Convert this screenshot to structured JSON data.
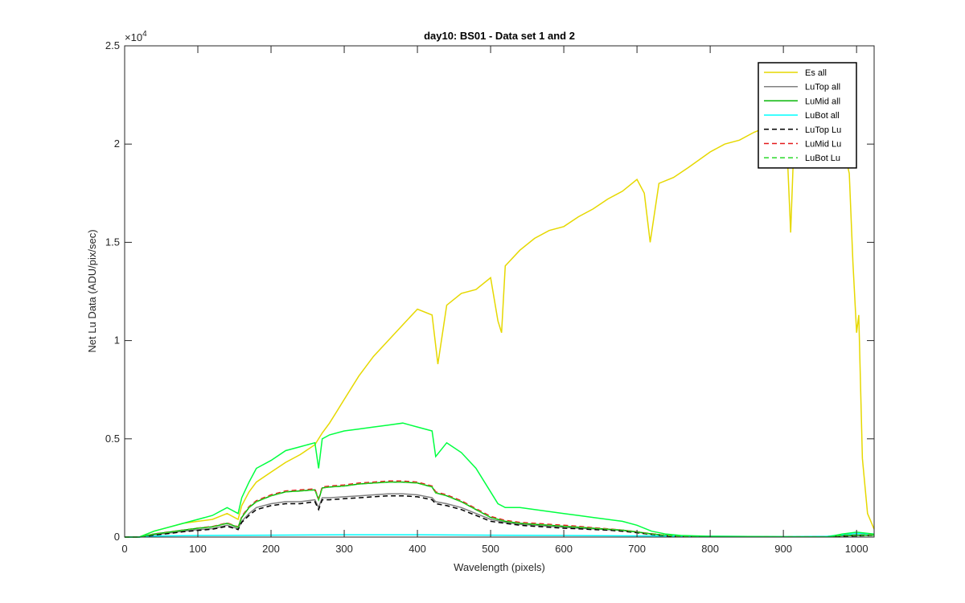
{
  "chart_data": {
    "type": "line",
    "title": "day10: BS01 - Data set 1 and 2",
    "xlabel": "Wavelength (pixels)",
    "ylabel": "Net Lu Data (ADU/pix/sec)",
    "xlim": [
      0,
      1024
    ],
    "ylim": [
      0,
      25000
    ],
    "y_exponent_label": "×10",
    "y_exponent_value": "4",
    "xticks": [
      0,
      100,
      200,
      300,
      400,
      500,
      600,
      700,
      800,
      900,
      1000
    ],
    "xtick_labels": [
      "0",
      "100",
      "200",
      "300",
      "400",
      "500",
      "600",
      "700",
      "800",
      "900",
      "1000"
    ],
    "yticks": [
      0,
      5000,
      10000,
      15000,
      20000,
      25000
    ],
    "ytick_labels": [
      "0",
      "0.5",
      "1",
      "1.5",
      "2",
      "2.5"
    ],
    "grid": false,
    "legend_position": "top-right",
    "series": [
      {
        "name": "Es  all",
        "color": "#e6d800",
        "dash": "solid",
        "x": [
          0,
          20,
          40,
          60,
          80,
          100,
          120,
          140,
          155,
          160,
          170,
          180,
          200,
          220,
          240,
          260,
          270,
          280,
          290,
          300,
          320,
          340,
          360,
          380,
          400,
          420,
          428,
          440,
          460,
          480,
          500,
          510,
          515,
          520,
          540,
          560,
          580,
          600,
          620,
          640,
          660,
          680,
          700,
          710,
          718,
          730,
          750,
          770,
          800,
          820,
          840,
          860,
          880,
          900,
          905,
          910,
          915,
          940,
          960,
          980,
          990,
          995,
          1000,
          1003,
          1008,
          1015,
          1024
        ],
        "y": [
          0,
          0,
          300,
          500,
          700,
          800,
          900,
          1200,
          900,
          1600,
          2300,
          2800,
          3300,
          3800,
          4200,
          4700,
          5300,
          5800,
          6400,
          7000,
          8200,
          9200,
          10000,
          10800,
          11600,
          11300,
          8800,
          11800,
          12400,
          12600,
          13200,
          11000,
          10400,
          13800,
          14600,
          15200,
          15600,
          15800,
          16300,
          16700,
          17200,
          17600,
          18200,
          17500,
          15000,
          18000,
          18300,
          18800,
          19600,
          20000,
          20200,
          20600,
          20900,
          20600,
          19800,
          15500,
          20700,
          21000,
          20800,
          20200,
          18500,
          14000,
          10400,
          11300,
          4000,
          1200,
          400
        ]
      },
      {
        "name": "LuTop  all",
        "color": "#808080",
        "dash": "solid",
        "x": [
          0,
          20,
          40,
          60,
          80,
          100,
          120,
          140,
          155,
          160,
          170,
          180,
          200,
          220,
          240,
          260,
          265,
          270,
          280,
          300,
          320,
          340,
          360,
          380,
          400,
          420,
          425,
          440,
          460,
          480,
          500,
          520,
          540,
          560,
          580,
          600,
          620,
          640,
          660,
          680,
          700,
          720,
          740,
          760,
          800,
          900,
          960,
          980,
          1000,
          1024
        ],
        "y": [
          0,
          0,
          120,
          200,
          300,
          380,
          430,
          600,
          420,
          800,
          1200,
          1500,
          1700,
          1800,
          1800,
          1900,
          1500,
          2000,
          2000,
          2050,
          2100,
          2150,
          2200,
          2200,
          2150,
          2000,
          1800,
          1700,
          1500,
          1200,
          900,
          750,
          650,
          600,
          550,
          500,
          450,
          420,
          380,
          330,
          250,
          150,
          80,
          30,
          20,
          10,
          10,
          60,
          80,
          100
        ]
      },
      {
        "name": "LuMid  all",
        "color": "#00b400",
        "dash": "solid",
        "x": [
          0,
          20,
          40,
          60,
          80,
          100,
          120,
          140,
          155,
          160,
          170,
          180,
          200,
          220,
          240,
          260,
          265,
          270,
          280,
          300,
          320,
          340,
          360,
          380,
          400,
          420,
          425,
          440,
          460,
          480,
          500,
          520,
          540,
          560,
          580,
          600,
          620,
          640,
          660,
          680,
          700,
          720,
          740,
          760,
          800,
          900,
          960,
          980,
          1000,
          1024
        ],
        "y": [
          0,
          0,
          150,
          250,
          350,
          450,
          520,
          700,
          500,
          1000,
          1500,
          1800,
          2100,
          2300,
          2350,
          2400,
          1900,
          2500,
          2550,
          2600,
          2700,
          2750,
          2800,
          2800,
          2750,
          2550,
          2250,
          2100,
          1800,
          1400,
          1000,
          800,
          700,
          650,
          600,
          550,
          500,
          450,
          400,
          350,
          260,
          160,
          80,
          30,
          20,
          10,
          10,
          80,
          100,
          100
        ]
      },
      {
        "name": "LuBot  all",
        "color": "#00ffff",
        "dash": "solid",
        "x": [
          0,
          20,
          40,
          60,
          80,
          100,
          200,
          300,
          400,
          500,
          600,
          700,
          800,
          900,
          960,
          980,
          1000,
          1024
        ],
        "y": [
          0,
          0,
          50,
          60,
          70,
          80,
          100,
          120,
          120,
          100,
          80,
          60,
          40,
          20,
          40,
          120,
          180,
          150
        ]
      },
      {
        "name": "LuTop  Lu",
        "color": "#000000",
        "dash": "dashed",
        "x": [
          0,
          20,
          40,
          60,
          80,
          100,
          120,
          140,
          155,
          160,
          170,
          180,
          200,
          220,
          240,
          260,
          265,
          270,
          280,
          300,
          320,
          340,
          360,
          380,
          400,
          420,
          425,
          440,
          460,
          480,
          500,
          520,
          540,
          560,
          580,
          600,
          620,
          640,
          660,
          680,
          700,
          720,
          740,
          760,
          800,
          900,
          960,
          980,
          1000,
          1024
        ],
        "y": [
          0,
          0,
          100,
          180,
          270,
          340,
          400,
          550,
          380,
          750,
          1100,
          1400,
          1600,
          1700,
          1700,
          1800,
          1400,
          1900,
          1900,
          1950,
          2000,
          2050,
          2100,
          2100,
          2050,
          1900,
          1700,
          1600,
          1400,
          1100,
          800,
          700,
          600,
          550,
          500,
          450,
          420,
          380,
          350,
          300,
          220,
          130,
          60,
          20,
          10,
          10,
          10,
          50,
          60,
          80
        ]
      },
      {
        "name": "LuMid  Lu",
        "color": "#e41a1c",
        "dash": "dashed",
        "x": [
          0,
          20,
          40,
          60,
          80,
          100,
          120,
          140,
          155,
          160,
          170,
          180,
          200,
          220,
          240,
          260,
          265,
          270,
          280,
          300,
          320,
          340,
          360,
          380,
          400,
          420,
          425,
          440,
          460,
          480,
          500,
          520,
          540,
          560,
          580,
          600,
          620,
          640,
          660,
          680,
          700,
          720,
          740,
          760,
          800,
          900,
          960,
          980,
          1000,
          1024
        ],
        "y": [
          0,
          0,
          160,
          260,
          360,
          460,
          540,
          720,
          520,
          1050,
          1550,
          1850,
          2150,
          2350,
          2400,
          2450,
          1950,
          2550,
          2600,
          2650,
          2750,
          2800,
          2850,
          2850,
          2800,
          2600,
          2300,
          2150,
          1850,
          1450,
          1050,
          850,
          750,
          700,
          650,
          600,
          550,
          480,
          420,
          360,
          270,
          170,
          90,
          40,
          25,
          15,
          15,
          90,
          110,
          110
        ]
      },
      {
        "name": "LuBot  Lu",
        "color": "#2bd92b",
        "dash": "dashed",
        "x": [
          0,
          20,
          40,
          60,
          80,
          100,
          120,
          140,
          155,
          160,
          170,
          180,
          200,
          220,
          240,
          260,
          265,
          270,
          280,
          300,
          320,
          340,
          360,
          380,
          400,
          420,
          425,
          440,
          460,
          480,
          500,
          520,
          540,
          560,
          580,
          600,
          620,
          640,
          660,
          680,
          700,
          720,
          740,
          760,
          800,
          900,
          960,
          980,
          1000,
          1024
        ],
        "y": [
          0,
          0,
          150,
          250,
          350,
          450,
          520,
          700,
          500,
          1000,
          1500,
          1800,
          2100,
          2300,
          2350,
          2400,
          1900,
          2500,
          2550,
          2600,
          2700,
          2750,
          2800,
          2800,
          2750,
          2550,
          2250,
          2100,
          1800,
          1400,
          1000,
          800,
          700,
          650,
          600,
          550,
          500,
          450,
          400,
          350,
          260,
          160,
          80,
          30,
          20,
          10,
          10,
          80,
          100,
          100
        ]
      },
      {
        "name": "",
        "color": "#00ff40",
        "dash": "solid",
        "x": [
          0,
          20,
          40,
          60,
          80,
          100,
          120,
          140,
          155,
          160,
          170,
          180,
          200,
          220,
          240,
          260,
          265,
          270,
          280,
          300,
          320,
          340,
          360,
          380,
          400,
          420,
          425,
          440,
          460,
          480,
          500,
          510,
          520,
          540,
          560,
          580,
          600,
          620,
          640,
          660,
          680,
          700,
          720,
          740,
          760,
          800,
          900,
          960,
          980,
          1000,
          1024
        ],
        "y": [
          0,
          0,
          300,
          500,
          700,
          900,
          1100,
          1500,
          1200,
          2000,
          2800,
          3500,
          3900,
          4400,
          4600,
          4800,
          3500,
          5000,
          5200,
          5400,
          5500,
          5600,
          5700,
          5800,
          5600,
          5400,
          4100,
          4800,
          4300,
          3500,
          2300,
          1700,
          1500,
          1500,
          1400,
          1300,
          1200,
          1100,
          1000,
          900,
          800,
          600,
          300,
          150,
          80,
          40,
          20,
          10,
          150,
          250,
          150
        ]
      }
    ]
  }
}
